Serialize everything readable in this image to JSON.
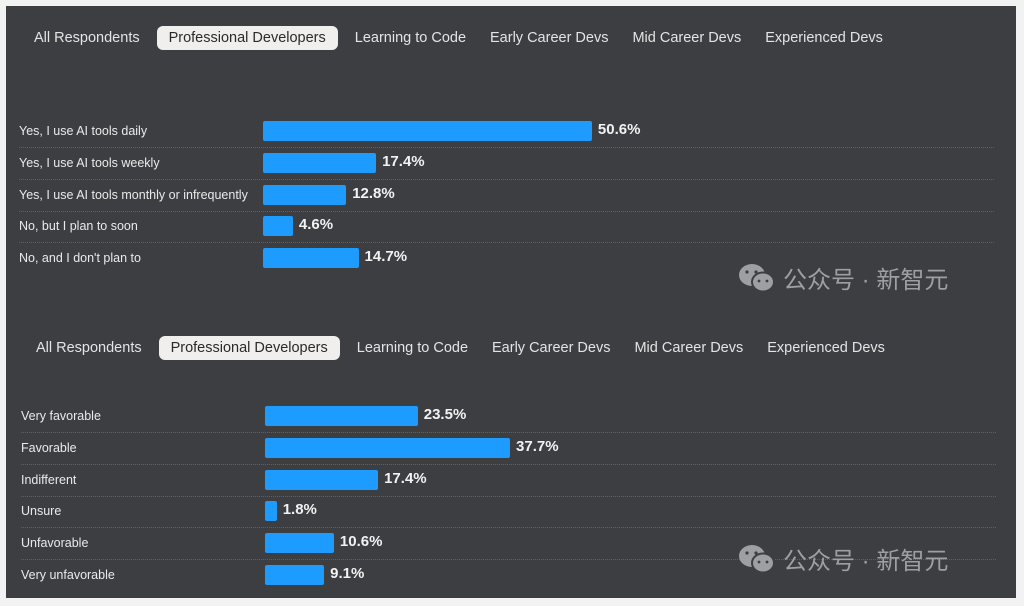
{
  "tabs": [
    "All Respondents",
    "Professional Developers",
    "Learning to Code",
    "Early Career Devs",
    "Mid Career Devs",
    "Experienced Devs"
  ],
  "active_tab": 1,
  "watermark": "公众号 · 新智元",
  "colors": {
    "bar": "#1e9bff",
    "background": "#3d3e42"
  },
  "chart_data": [
    {
      "type": "bar",
      "orientation": "horizontal",
      "categories": [
        "Yes, I use AI tools daily",
        "Yes, I use AI tools weekly",
        "Yes, I use AI tools monthly or infrequently",
        "No, but I plan to soon",
        "No, and I don't plan to"
      ],
      "values": [
        50.6,
        17.4,
        12.8,
        4.6,
        14.7
      ],
      "labels": [
        "50.6%",
        "17.4%",
        "12.8%",
        "4.6%",
        "14.7%"
      ]
    },
    {
      "type": "bar",
      "orientation": "horizontal",
      "categories": [
        "Very favorable",
        "Favorable",
        "Indifferent",
        "Unsure",
        "Unfavorable",
        "Very unfavorable"
      ],
      "values": [
        23.5,
        37.7,
        17.4,
        1.8,
        10.6,
        9.1
      ],
      "labels": [
        "23.5%",
        "37.7%",
        "17.4%",
        "1.8%",
        "10.6%",
        "9.1%"
      ]
    }
  ]
}
